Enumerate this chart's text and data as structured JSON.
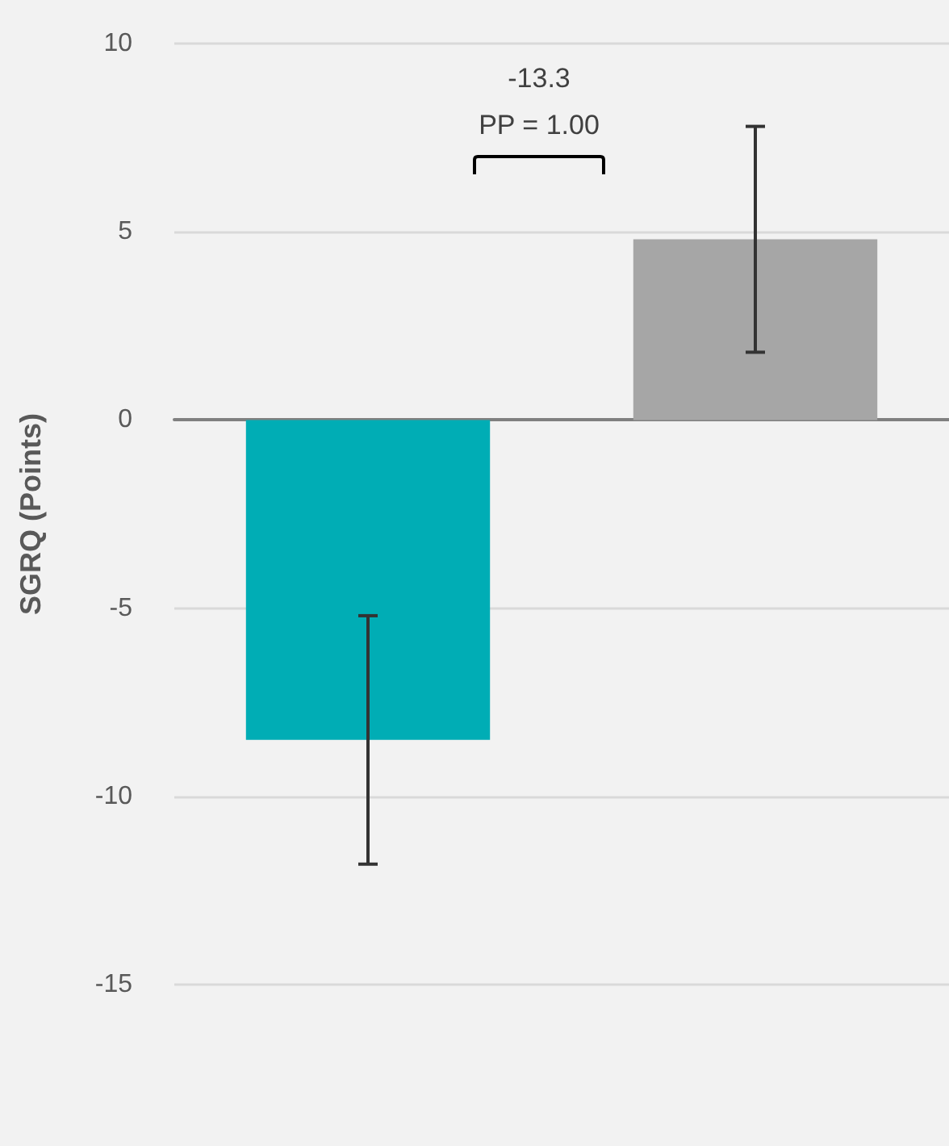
{
  "chart_data": {
    "type": "bar",
    "ylabel": "SGRQ (Points)",
    "categories": [
      null,
      null
    ],
    "values": [
      -8.5,
      4.8
    ],
    "colors": [
      "#00adb5",
      "#a6a6a6"
    ],
    "errors": [
      3.3,
      3.0
    ],
    "ylim": [
      -15,
      10
    ],
    "yticks": [
      -15,
      -10,
      -5,
      0,
      5,
      10
    ],
    "grid": "y",
    "tick_labels": "y",
    "annotations": [
      "-13.3",
      "PP = 1.00"
    ]
  }
}
